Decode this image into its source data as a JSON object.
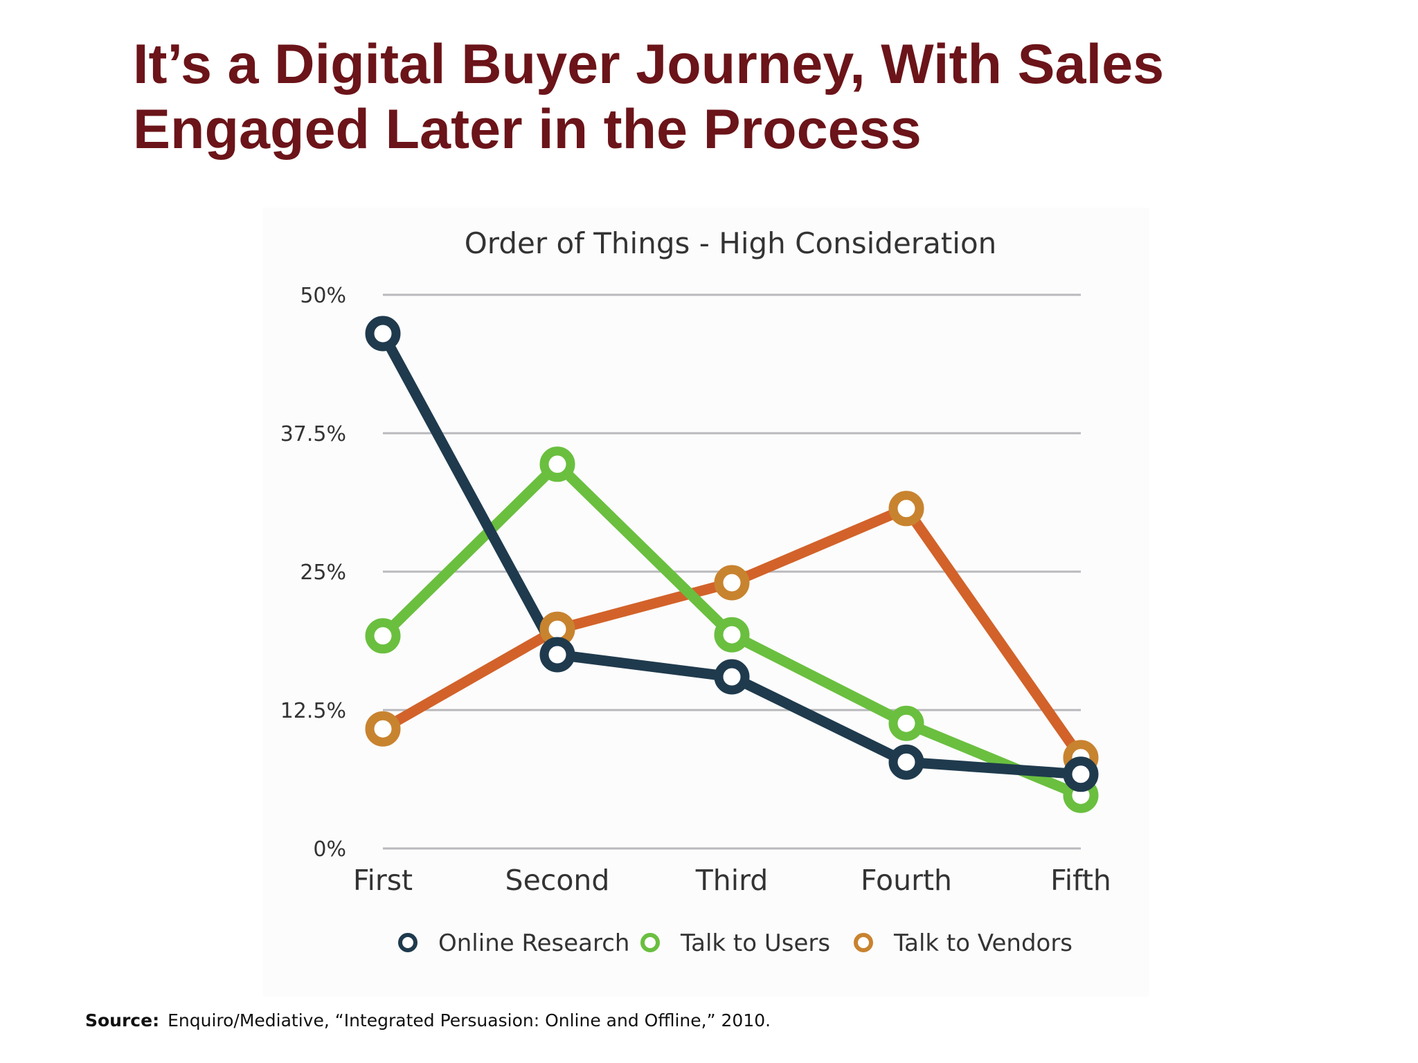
{
  "slide": {
    "title_line1": "It’s a Digital Buyer Journey, With Sales",
    "title_line2": "Engaged Later in the Process",
    "title_color": "#6b1419"
  },
  "chart_data": {
    "type": "line",
    "title": "Order of Things - High Consideration",
    "xlabel": "",
    "ylabel": "",
    "categories": [
      "First",
      "Second",
      "Third",
      "Fourth",
      "Fifth"
    ],
    "ylim": [
      0,
      50
    ],
    "yticks": [
      0,
      12.5,
      25,
      37.5,
      50
    ],
    "ytick_labels": [
      "0%",
      "12.5%",
      "25%",
      "37.5%",
      "50%"
    ],
    "grid": true,
    "legend_position": "bottom",
    "series": [
      {
        "name": "Online Research",
        "color": "#1f3a4d",
        "values": [
          46.5,
          17.5,
          15.5,
          7.8,
          6.7
        ]
      },
      {
        "name": "Talk to Users",
        "color": "#6abf3f",
        "values": [
          19.2,
          34.7,
          19.3,
          11.3,
          4.8
        ]
      },
      {
        "name": "Talk to Vendors",
        "color": "#d2622a",
        "values": [
          10.8,
          19.8,
          24.0,
          30.7,
          8.2
        ]
      }
    ],
    "legend_marker_colors": [
      "#1f3a4d",
      "#6abf3f",
      "#c8832f"
    ]
  },
  "source": {
    "label": "Source:",
    "text": "Enquiro/Mediative, “Integrated Persuasion: Online and Offline,” 2010."
  }
}
